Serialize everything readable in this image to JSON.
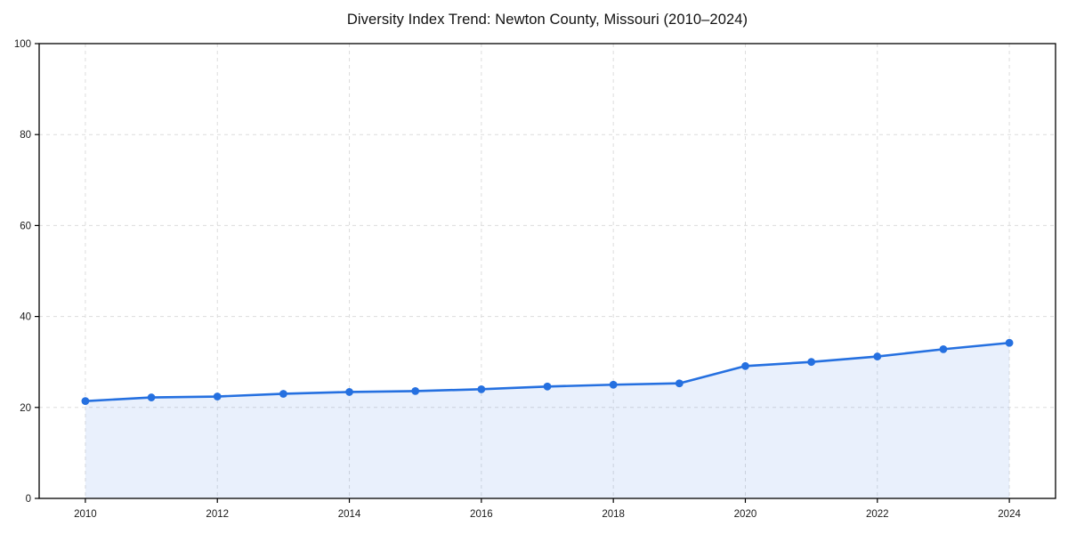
{
  "chart_data": {
    "type": "line",
    "title": "Diversity Index Trend: Newton County, Missouri (2010–2024)",
    "xlabel": "",
    "ylabel": "",
    "x": [
      2010,
      2011,
      2012,
      2013,
      2014,
      2015,
      2016,
      2017,
      2018,
      2019,
      2020,
      2021,
      2022,
      2023,
      2024
    ],
    "series": [
      {
        "name": "Diversity Index",
        "values": [
          21.4,
          22.2,
          22.4,
          23.0,
          23.4,
          23.6,
          24.0,
          24.6,
          25.0,
          25.3,
          29.1,
          30.0,
          31.2,
          32.8,
          34.2
        ]
      }
    ],
    "xlim": [
      2009.3,
      2024.7
    ],
    "ylim": [
      0,
      100
    ],
    "x_ticks": [
      2010,
      2012,
      2014,
      2016,
      2018,
      2020,
      2022,
      2024
    ],
    "y_ticks": [
      0,
      20,
      40,
      60,
      80,
      100
    ],
    "grid": true,
    "legend_position": "none",
    "colors": {
      "line": "#2570e0",
      "marker": "#2570e0",
      "area_fill": "rgba(37,112,224,0.10)",
      "grid": "#dddddd",
      "axis": "#000000",
      "tick_text": "#1a1a1a",
      "background": "#ffffff"
    }
  }
}
